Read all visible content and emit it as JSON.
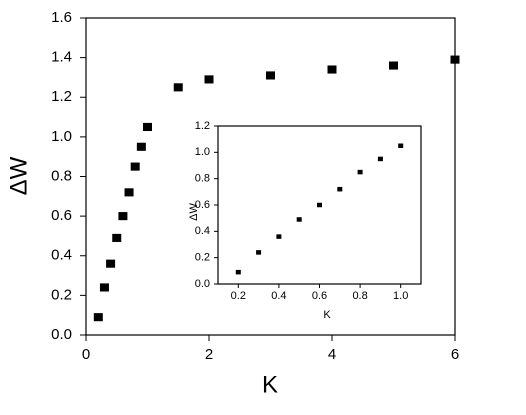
{
  "chart_data": [
    {
      "type": "scatter",
      "xlabel": "K",
      "ylabel": "ΔW",
      "color": "#000000",
      "x": [
        0.2,
        0.3,
        0.4,
        0.5,
        0.6,
        0.7,
        0.8,
        0.9,
        1.0,
        1.5,
        2,
        3,
        4,
        5,
        6
      ],
      "values": [
        0.09,
        0.24,
        0.36,
        0.49,
        0.6,
        0.72,
        0.85,
        0.95,
        1.05,
        1.25,
        1.29,
        1.31,
        1.34,
        1.36,
        1.39
      ],
      "xlim": [
        0,
        6
      ],
      "xticks": [
        0,
        2,
        4,
        6
      ],
      "ylim": [
        0,
        1.6
      ],
      "yticks": [
        {
          "value": 0,
          "label": "0.0"
        },
        {
          "value": 0.2,
          "label": "0.2"
        },
        {
          "value": 0.4,
          "label": "0.4"
        },
        {
          "value": 0.6,
          "label": "0.6"
        },
        {
          "value": 0.8,
          "label": "0.8"
        },
        {
          "value": 1,
          "label": "1.0"
        },
        {
          "value": 1.2,
          "label": "1.2"
        },
        {
          "value": 1.4,
          "label": "1.4"
        },
        {
          "value": 1.6,
          "label": "1.6"
        }
      ]
    },
    {
      "type": "scatter",
      "xlabel": "K",
      "ylabel": "ΔW",
      "color": "#000000",
      "x": [
        0.2,
        0.3,
        0.4,
        0.5,
        0.6,
        0.7,
        0.8,
        0.9,
        1.0
      ],
      "values": [
        0.09,
        0.24,
        0.36,
        0.49,
        0.6,
        0.72,
        0.85,
        0.95,
        1.05
      ],
      "xlim": [
        0.1,
        1.1
      ],
      "xticks": [
        {
          "value": 0.2,
          "label": "0.2"
        },
        {
          "value": 0.4,
          "label": "0.4"
        },
        {
          "value": 0.6,
          "label": "0.6"
        },
        {
          "value": 0.8,
          "label": "0.8"
        },
        {
          "value": 1,
          "label": "1.0"
        }
      ],
      "ylim": [
        0,
        1.2
      ],
      "yticks": [
        {
          "value": 0,
          "label": "0.0"
        },
        {
          "value": 0.2,
          "label": "0.2"
        },
        {
          "value": 0.4,
          "label": "0.4"
        },
        {
          "value": 0.6,
          "label": "0.6"
        },
        {
          "value": 0.8,
          "label": "0.8"
        },
        {
          "value": 1,
          "label": "1.0"
        },
        {
          "value": 1.2,
          "label": "1.2"
        }
      ]
    }
  ]
}
